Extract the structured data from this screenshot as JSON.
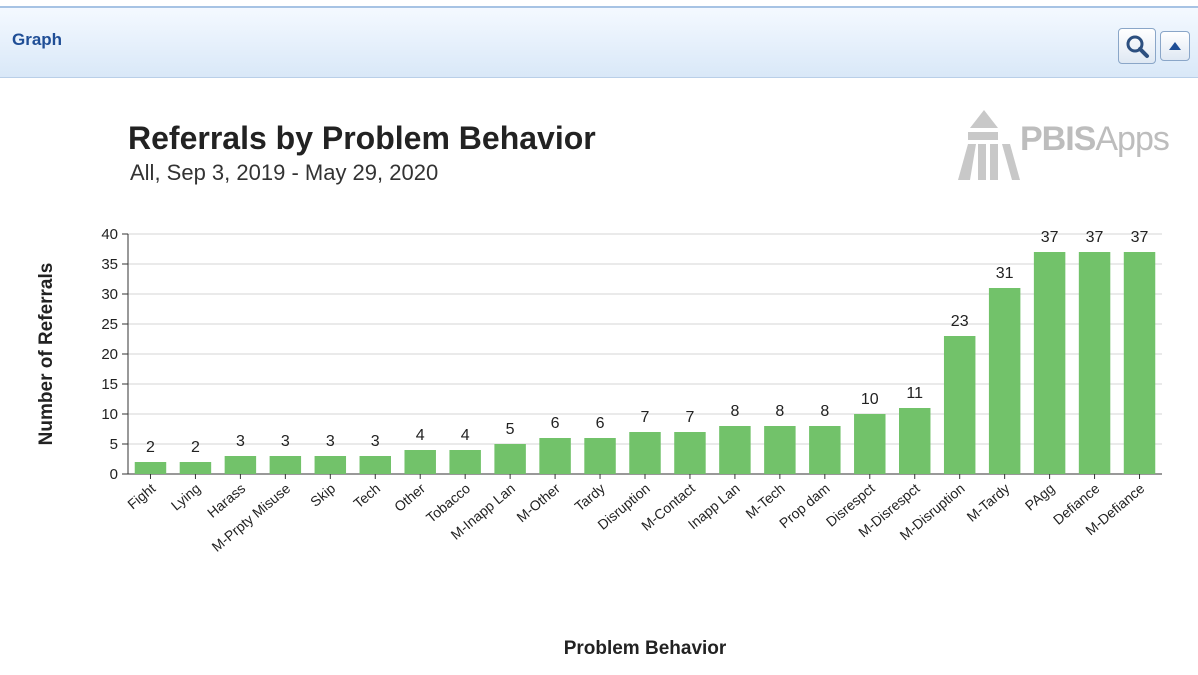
{
  "panel": {
    "title": "Graph",
    "zoom_icon": "magnifier-icon",
    "collapse_icon": "chevron-up-icon"
  },
  "logo": {
    "bold": "PBIS",
    "rest": "Apps",
    "color": "#bdbdbd"
  },
  "chart_data": {
    "type": "bar",
    "title": "Referrals by Problem Behavior",
    "subtitle": "All, Sep 3, 2019 - May 29, 2020",
    "xlabel": "Problem Behavior",
    "ylabel": "Number of Referrals",
    "ylim": [
      0,
      40
    ],
    "yticks": [
      0,
      5,
      10,
      15,
      20,
      25,
      30,
      35,
      40
    ],
    "grid": true,
    "bar_color": "#72c26a",
    "categories": [
      "Fight",
      "Lying",
      "Harass",
      "M-Prpty Misuse",
      "Skip",
      "Tech",
      "Other",
      "Tobacco",
      "M-Inapp Lan",
      "M-Other",
      "Tardy",
      "Disruption",
      "M-Contact",
      "Inapp Lan",
      "M-Tech",
      "Prop dam",
      "Disrespct",
      "M-Disrespct",
      "M-Disruption",
      "M-Tardy",
      "PAgg",
      "Defiance",
      "M-Defiance"
    ],
    "values": [
      2,
      2,
      3,
      3,
      3,
      3,
      4,
      4,
      5,
      6,
      6,
      7,
      7,
      8,
      8,
      8,
      10,
      11,
      23,
      31,
      37,
      37,
      37
    ]
  }
}
